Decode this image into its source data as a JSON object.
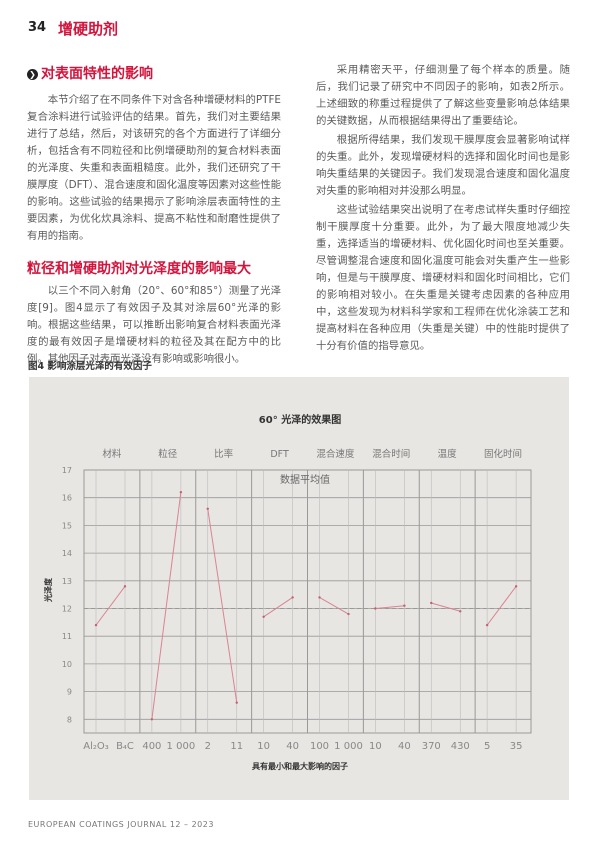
{
  "header": {
    "page_number": "34",
    "running_title": "增硬助剂"
  },
  "left": {
    "section_heading": "对表面特性的影响",
    "para1": "本节介绍了在不同条件下对含各种增硬材料的PTFE复合涂料进行试验评估的结果。首先，我们对主要结果进行了总结，然后，对该研究的各个方面进行了详细分析，包括含有不同粒径和比例增硬助剂的复合材料表面的光泽度、失重和表面粗糙度。此外，我们还研究了干膜厚度（DFT）、混合速度和固化温度等因素对这些性能的影响。这些试验的结果揭示了影响涂层表面特性的主要因素，为优化炊具涂料、提高不粘性和耐磨性提供了有用的指南。",
    "subheading": "粒径和增硬助剂对光泽度的影响最大",
    "para2": "以三个不同入射角（20°、60°和85°）测量了光泽度[9]。图4显示了有效因子及其对涂层60°光泽的影响。根据这些结果，可以推断出影响复合材料表面光泽度的最有效因子是增硬材料的粒径及其在配方中的比例。其他因子对表面光泽没有影响或影响很小。"
  },
  "right": {
    "para1": "采用精密天平，仔细测量了每个样本的质量。随后，我们记录了研究中不同因子的影响，如表2所示。上述细致的称重过程提供了了解这些变量影响总体结果的关键数据，从而根据结果得出了重要结论。",
    "para2": "根据所得结果，我们发现干膜厚度会显著影响试样的失重。此外，发现增硬材料的选择和固化时间也是影响失重结果的关键因子。我们发现混合速度和固化温度对失重的影响相对并没那么明显。",
    "para3": "这些试验结果突出说明了在考虑试样失重时仔细控制干膜厚度十分重要。此外，为了最大限度地减少失重，选择适当的增硬材料、优化固化时间也至关重要。尽管调整混合速度和固化温度可能会对失重产生一些影响，但是与干膜厚度、增硬材料和固化时间相比，它们的影响相对较小。在失重是关键考虑因素的各种应用中，这些发现为材料科学家和工程师在优化涂装工艺和提高材料在各种应用（失重是关键）中的性能时提供了十分有价值的指导意见。"
  },
  "figure": {
    "caption": "图4 影响涂层光泽的有效因子"
  },
  "chart_data": {
    "type": "line",
    "title": "60° 光泽的效果图",
    "ylabel": "光泽度",
    "xlabel": "具有最小和最大影响的因子",
    "mean_label": "数据平均值",
    "mean": 12.0,
    "ylim": [
      7.5,
      17
    ],
    "yticks": [
      8,
      9,
      10,
      11,
      12,
      13,
      14,
      15,
      16,
      17
    ],
    "grid": true,
    "line_color": "#d9848f",
    "groups": [
      {
        "name": "材料",
        "levels": [
          "Al₂O₃",
          "B₄C"
        ],
        "values": [
          11.4,
          12.8
        ]
      },
      {
        "name": "粒径",
        "levels": [
          "400",
          "1 000"
        ],
        "values": [
          8.0,
          16.2
        ]
      },
      {
        "name": "比率",
        "levels": [
          "2",
          "11"
        ],
        "values": [
          15.6,
          8.6
        ]
      },
      {
        "name": "DFT",
        "levels": [
          "10",
          "40"
        ],
        "values": [
          11.7,
          12.4
        ]
      },
      {
        "name": "混合速度",
        "levels": [
          "100",
          "1 000"
        ],
        "values": [
          12.4,
          11.8
        ]
      },
      {
        "name": "混合时间",
        "levels": [
          "10",
          "40"
        ],
        "values": [
          12.0,
          12.1
        ]
      },
      {
        "name": "温度",
        "levels": [
          "370",
          "430"
        ],
        "values": [
          12.2,
          11.9
        ]
      },
      {
        "name": "固化时间",
        "levels": [
          "5",
          "35"
        ],
        "values": [
          11.4,
          12.8
        ]
      }
    ]
  },
  "footer": {
    "journal": "EUROPEAN COATINGS JOURNAL 12 – 2023"
  },
  "colors": {
    "accent": "#d3143c",
    "panel": "#e8e6e3"
  }
}
